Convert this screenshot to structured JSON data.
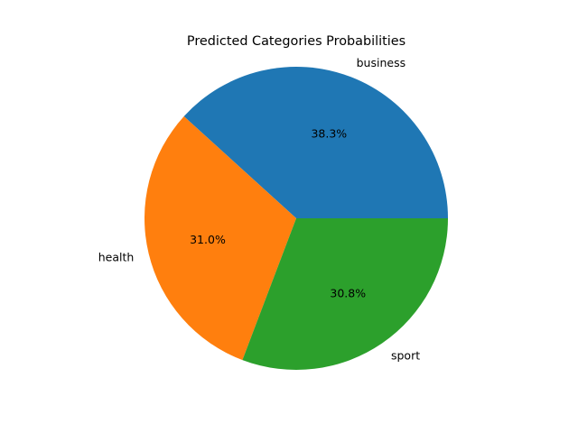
{
  "chart_data": {
    "type": "pie",
    "title": "Predicted Categories Probabilities",
    "categories": [
      "business",
      "health",
      "sport"
    ],
    "values": [
      38.3,
      31.0,
      30.8
    ],
    "value_labels": [
      "38.3%",
      "31.0%",
      "30.8%"
    ],
    "colors": [
      "#1f77b4",
      "#ff7f0e",
      "#2ca02c"
    ],
    "start_angle_deg": 0,
    "direction": "counterclockwise",
    "legend": "none"
  }
}
